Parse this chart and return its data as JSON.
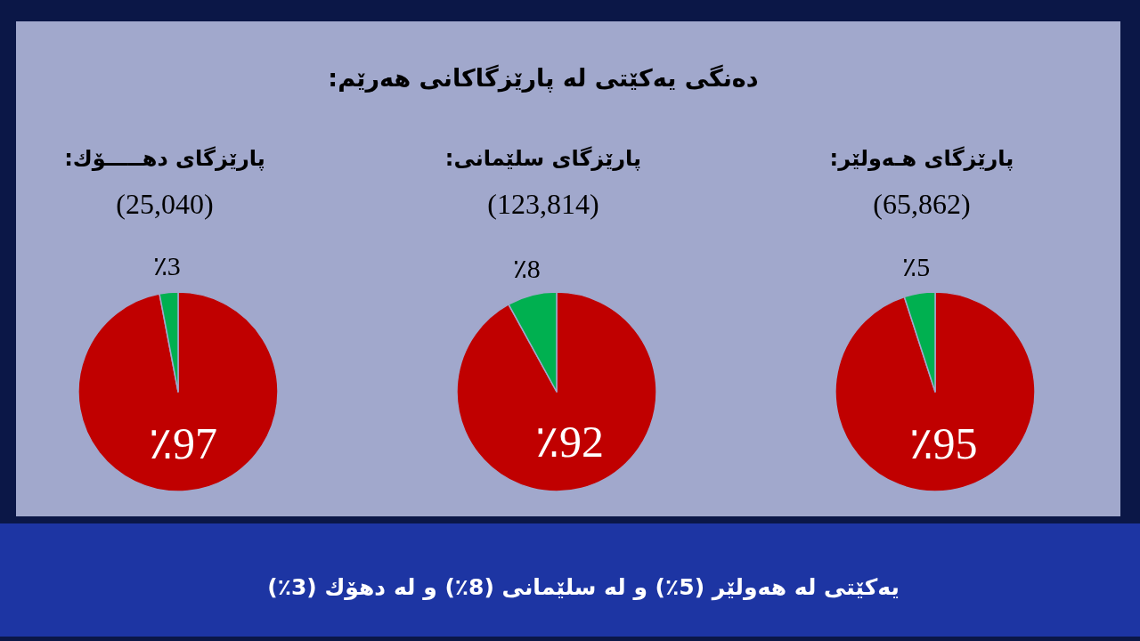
{
  "chart_data": [
    {
      "type": "other",
      "title": "دەنگی یەکێتی لە پارێزگاکانی هەرێم:"
    },
    {
      "type": "pie",
      "title": "پارێزگای هـەولێر:",
      "subtitle": "(65,862)",
      "categories": [
        null,
        null
      ],
      "values": [
        95,
        5
      ],
      "colors": [
        "#c00000",
        "#00b050"
      ],
      "value_labels": [
        "٪95",
        "٪5"
      ]
    },
    {
      "type": "pie",
      "title": "پارێزگای سلێمانی:",
      "subtitle": "(123,814)",
      "categories": [
        null,
        null
      ],
      "values": [
        92,
        8
      ],
      "colors": [
        "#c00000",
        "#00b050"
      ],
      "value_labels": [
        "٪92",
        "٪8"
      ]
    },
    {
      "type": "pie",
      "title": "پارێزگای دهـــــۆك:",
      "subtitle": "(25,040)",
      "categories": [
        null,
        null
      ],
      "values": [
        97,
        3
      ],
      "colors": [
        "#c00000",
        "#00b050"
      ],
      "value_labels": [
        "٪97",
        "٪3"
      ]
    },
    {
      "type": "other",
      "annotations": [
        "یەکێتی لە هەولێر (5٪) و لە سلێمانی (8٪) و لە دهۆك (3٪)"
      ]
    }
  ]
}
